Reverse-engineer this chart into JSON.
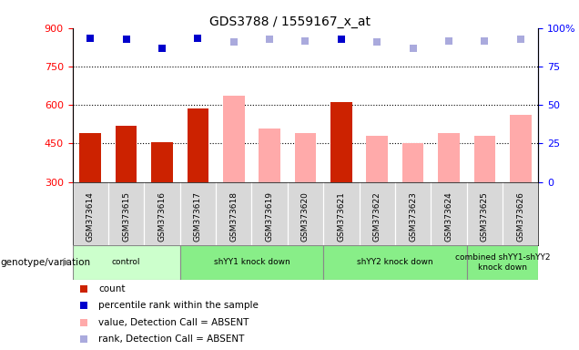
{
  "title": "GDS3788 / 1559167_x_at",
  "samples": [
    "GSM373614",
    "GSM373615",
    "GSM373616",
    "GSM373617",
    "GSM373618",
    "GSM373619",
    "GSM373620",
    "GSM373621",
    "GSM373622",
    "GSM373623",
    "GSM373624",
    "GSM373625",
    "GSM373626"
  ],
  "bar_values": [
    490,
    520,
    455,
    585,
    635,
    510,
    490,
    610,
    480,
    450,
    490,
    480,
    560
  ],
  "bar_colors": [
    "#cc2200",
    "#cc2200",
    "#cc2200",
    "#cc2200",
    "#ffaaaa",
    "#ffaaaa",
    "#ffaaaa",
    "#cc2200",
    "#ffaaaa",
    "#ffaaaa",
    "#ffaaaa",
    "#ffaaaa",
    "#ffaaaa"
  ],
  "dot_values_blue": [
    860,
    855,
    820,
    860,
    null,
    null,
    null,
    855,
    null,
    null,
    null,
    null,
    null
  ],
  "dot_values_light": [
    null,
    null,
    null,
    null,
    845,
    855,
    850,
    null,
    845,
    820,
    850,
    850,
    855
  ],
  "ymin": 300,
  "ymax": 900,
  "yticks": [
    300,
    450,
    600,
    750,
    900
  ],
  "y2ticks": [
    0,
    25,
    50,
    75,
    100
  ],
  "y2min": 0,
  "y2max": 100,
  "hlines": [
    450,
    600,
    750
  ],
  "group_configs": [
    {
      "start": 0,
      "end": 2,
      "color": "#ccffcc",
      "label": "control"
    },
    {
      "start": 3,
      "end": 6,
      "color": "#88ee88",
      "label": "shYY1 knock down"
    },
    {
      "start": 7,
      "end": 10,
      "color": "#88ee88",
      "label": "shYY2 knock down"
    },
    {
      "start": 11,
      "end": 12,
      "color": "#88ee88",
      "label": "combined shYY1-shYY2\nknock down"
    }
  ],
  "legend_items": [
    {
      "label": "count",
      "color": "#cc2200"
    },
    {
      "label": "percentile rank within the sample",
      "color": "#0000cc"
    },
    {
      "label": "value, Detection Call = ABSENT",
      "color": "#ffaaaa"
    },
    {
      "label": "rank, Detection Call = ABSENT",
      "color": "#aaaadd"
    }
  ],
  "xlabel_left": "genotype/variation",
  "bar_width": 0.6,
  "dot_size": 40,
  "col_bg": "#d8d8d8",
  "plot_bg": "#ffffff"
}
